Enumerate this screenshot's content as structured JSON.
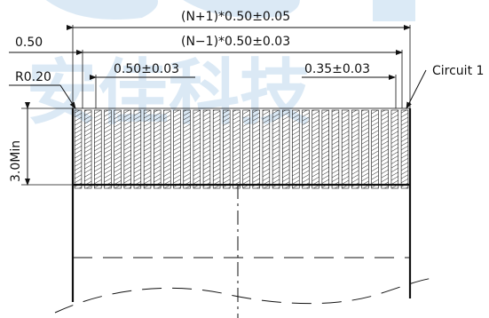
{
  "drawing": {
    "overall_pitch_label": "(N+1)*0.50±0.05",
    "inner_pitch_label": "(N−1)*0.50±0.03",
    "edge_offset_label": "0.50",
    "corner_radius_label": "R0.20",
    "pitch_label": "0.50±0.03",
    "contact_width_label": "0.35±0.03",
    "circuit_label": "Circuit 1",
    "min_length_label": "3.0Min",
    "contact_count": 34
  },
  "watermark": {
    "text": "安佳科技"
  }
}
